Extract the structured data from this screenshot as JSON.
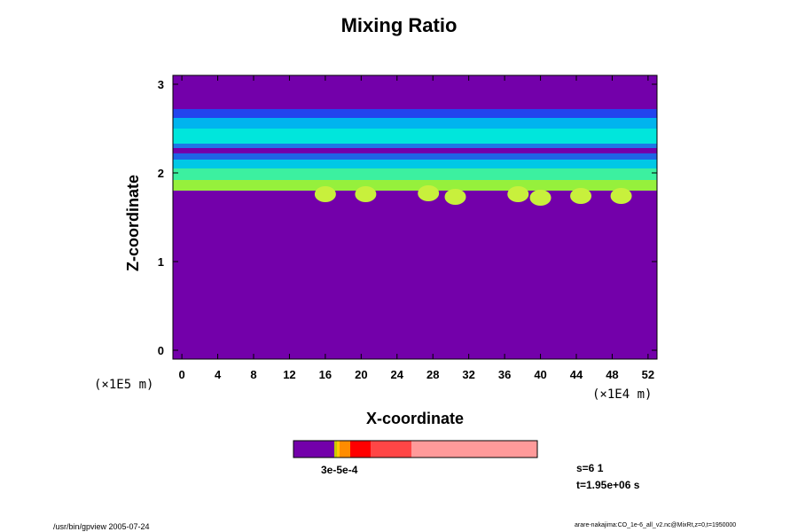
{
  "chart_data": {
    "type": "heatmap",
    "title": "Mixing Ratio",
    "xlabel": "X-coordinate",
    "ylabel": "Z-coordinate",
    "x_unit": "(×1E4 m)",
    "y_unit": "(×1E5 m)",
    "xlim": [
      -1,
      53
    ],
    "ylim": [
      -0.1,
      3.1
    ],
    "x_ticks": [
      0,
      4,
      8,
      12,
      16,
      20,
      24,
      28,
      32,
      36,
      40,
      44,
      48,
      52
    ],
    "y_ticks": [
      0,
      1,
      2,
      3
    ],
    "background_level_color": "#7300aa",
    "bands": [
      {
        "z_bottom": 2.62,
        "z_top": 2.72,
        "color": "#2244ee"
      },
      {
        "z_bottom": 2.5,
        "z_top": 2.62,
        "color": "#00b4ee"
      },
      {
        "z_bottom": 2.33,
        "z_top": 2.5,
        "color": "#00e6dc"
      },
      {
        "z_bottom": 2.28,
        "z_top": 2.33,
        "color": "#1e78e6"
      },
      {
        "z_bottom": 2.15,
        "z_top": 2.22,
        "color": "#1e64e6"
      },
      {
        "z_bottom": 2.05,
        "z_top": 2.15,
        "color": "#00c8e6"
      },
      {
        "z_bottom": 1.92,
        "z_top": 2.05,
        "color": "#3cf0a0"
      },
      {
        "z_bottom": 1.8,
        "z_top": 1.92,
        "color": "#96f03c"
      }
    ],
    "colorbar": {
      "colors": [
        "#7300aa",
        "#c8c800",
        "#ffc800",
        "#ff8c00",
        "#ff0000",
        "#ff4646",
        "#ff9a9a"
      ],
      "label_text": "3e-5e-4"
    }
  },
  "info": {
    "s_label": "s=6 1",
    "t_label": "t=1.95e+06 s"
  },
  "footer": {
    "left": "/usr/bin/gpview 2005-07-24",
    "right": "arare-nakajima:CO_1e-6_all_v2.nc@MixRt,z=0,t=1950000"
  }
}
